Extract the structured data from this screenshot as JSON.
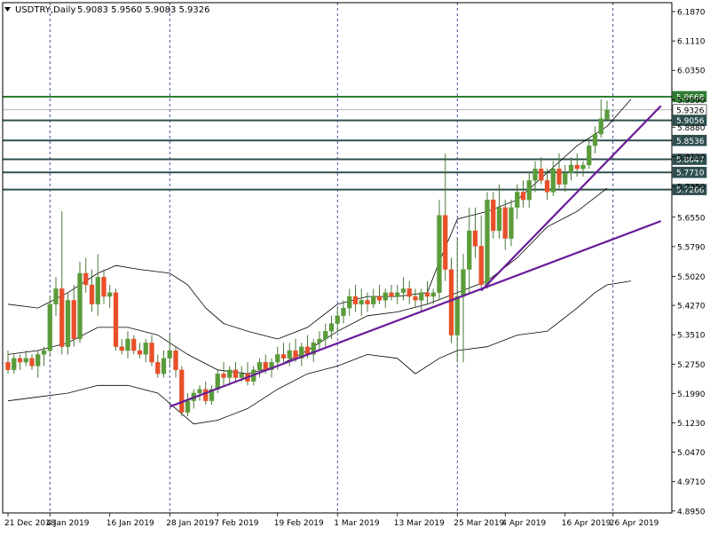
{
  "header": {
    "arrow_icon": "triangle-down-icon",
    "symbol": "USDTRY,Daily",
    "ohlc": "5.9083 5.9560 5.9083 5.9326"
  },
  "colors": {
    "background": "#ffffff",
    "bull": "#5a9c3a",
    "bear": "#e8502a",
    "wick": "#4a7a3a",
    "resistance": "#2f7d32",
    "level": "#2f4f4f",
    "trendline": "#6a1b9a",
    "band": "#000000",
    "grid": "#1a237e",
    "text": "#000000"
  },
  "chart_data": {
    "type": "candlestick",
    "title": "USDTRY,Daily",
    "ylim": [
      4.89,
      6.21
    ],
    "y_ticks": [
      "6.1870",
      "6.1110",
      "6.0350",
      "5.9590",
      "5.8880",
      "5.8120",
      "5.7350",
      "5.6550",
      "5.5790",
      "5.5020",
      "5.4270",
      "5.3510",
      "5.2750",
      "5.1990",
      "5.1230",
      "5.0470",
      "4.9710",
      "4.8950"
    ],
    "x_ticks": [
      "21 Dec 2018",
      "4 Jan 2019",
      "16 Jan 2019",
      "28 Jan 2019",
      "7 Feb 2019",
      "19 Feb 2019",
      "1 Mar 2019",
      "13 Mar 2019",
      "25 Mar 2019",
      "4 Apr 2019",
      "16 Apr 2019",
      "26 Apr 2019"
    ],
    "x_tick_index": [
      0,
      7,
      17,
      27,
      35,
      45,
      55,
      65,
      75,
      83,
      93,
      101
    ],
    "vertical_separators": [
      7,
      27,
      55,
      75,
      101
    ],
    "horizontal_levels": [
      {
        "label": "5.9668",
        "value": 5.9668,
        "role": "resistance"
      },
      {
        "label": "5.9326",
        "value": 5.9326,
        "role": "current"
      },
      {
        "label": "5.9056",
        "value": 5.9056,
        "role": "level"
      },
      {
        "label": "5.8536",
        "value": 5.8536,
        "role": "level"
      },
      {
        "label": "5.8047",
        "value": 5.8047,
        "role": "level"
      },
      {
        "label": "5.7710",
        "value": 5.771,
        "role": "level"
      },
      {
        "label": "5.7266",
        "value": 5.7266,
        "role": "level"
      }
    ],
    "trendlines": [
      {
        "from": [
          27,
          5.165
        ],
        "to": [
          109,
          5.645
        ]
      },
      {
        "from": [
          79,
          5.465
        ],
        "to": [
          109,
          5.943
        ]
      }
    ],
    "candles": [
      [
        5.28,
        5.31,
        5.25,
        5.26
      ],
      [
        5.26,
        5.3,
        5.25,
        5.29
      ],
      [
        5.29,
        5.3,
        5.26,
        5.28
      ],
      [
        5.28,
        5.31,
        5.27,
        5.29
      ],
      [
        5.29,
        5.3,
        5.26,
        5.27
      ],
      [
        5.27,
        5.31,
        5.24,
        5.3
      ],
      [
        5.3,
        5.32,
        5.27,
        5.31
      ],
      [
        5.31,
        5.45,
        5.3,
        5.43
      ],
      [
        5.43,
        5.5,
        5.4,
        5.47
      ],
      [
        5.47,
        5.67,
        5.3,
        5.32
      ],
      [
        5.32,
        5.46,
        5.3,
        5.44
      ],
      [
        5.44,
        5.48,
        5.32,
        5.34
      ],
      [
        5.34,
        5.54,
        5.33,
        5.51
      ],
      [
        5.51,
        5.55,
        5.46,
        5.48
      ],
      [
        5.48,
        5.52,
        5.41,
        5.43
      ],
      [
        5.43,
        5.56,
        5.4,
        5.5
      ],
      [
        5.5,
        5.52,
        5.43,
        5.45
      ],
      [
        5.45,
        5.48,
        5.42,
        5.46
      ],
      [
        5.46,
        5.47,
        5.31,
        5.32
      ],
      [
        5.32,
        5.34,
        5.3,
        5.31
      ],
      [
        5.31,
        5.36,
        5.29,
        5.34
      ],
      [
        5.34,
        5.35,
        5.3,
        5.31
      ],
      [
        5.31,
        5.33,
        5.29,
        5.3
      ],
      [
        5.3,
        5.34,
        5.28,
        5.33
      ],
      [
        5.33,
        5.35,
        5.27,
        5.28
      ],
      [
        5.28,
        5.3,
        5.24,
        5.25
      ],
      [
        5.25,
        5.31,
        5.24,
        5.29
      ],
      [
        5.29,
        5.35,
        5.27,
        5.31
      ],
      [
        5.31,
        5.32,
        5.24,
        5.26
      ],
      [
        5.26,
        5.27,
        5.14,
        5.15
      ],
      [
        5.15,
        5.2,
        5.14,
        5.18
      ],
      [
        5.18,
        5.21,
        5.16,
        5.2
      ],
      [
        5.2,
        5.22,
        5.18,
        5.21
      ],
      [
        5.21,
        5.23,
        5.17,
        5.18
      ],
      [
        5.18,
        5.22,
        5.17,
        5.21
      ],
      [
        5.21,
        5.26,
        5.2,
        5.25
      ],
      [
        5.25,
        5.28,
        5.22,
        5.24
      ],
      [
        5.24,
        5.27,
        5.22,
        5.26
      ],
      [
        5.26,
        5.28,
        5.23,
        5.24
      ],
      [
        5.24,
        5.27,
        5.23,
        5.25
      ],
      [
        5.25,
        5.28,
        5.22,
        5.23
      ],
      [
        5.23,
        5.27,
        5.22,
        5.26
      ],
      [
        5.26,
        5.29,
        5.24,
        5.28
      ],
      [
        5.28,
        5.3,
        5.25,
        5.26
      ],
      [
        5.26,
        5.29,
        5.24,
        5.28
      ],
      [
        5.28,
        5.32,
        5.26,
        5.3
      ],
      [
        5.3,
        5.33,
        5.28,
        5.29
      ],
      [
        5.29,
        5.33,
        5.27,
        5.31
      ],
      [
        5.31,
        5.34,
        5.28,
        5.29
      ],
      [
        5.29,
        5.33,
        5.27,
        5.32
      ],
      [
        5.32,
        5.35,
        5.29,
        5.3
      ],
      [
        5.3,
        5.34,
        5.28,
        5.33
      ],
      [
        5.33,
        5.36,
        5.31,
        5.34
      ],
      [
        5.34,
        5.38,
        5.32,
        5.36
      ],
      [
        5.36,
        5.4,
        5.34,
        5.38
      ],
      [
        5.38,
        5.42,
        5.36,
        5.4
      ],
      [
        5.4,
        5.44,
        5.38,
        5.42
      ],
      [
        5.42,
        5.47,
        5.4,
        5.45
      ],
      [
        5.45,
        5.48,
        5.41,
        5.43
      ],
      [
        5.43,
        5.47,
        5.4,
        5.44
      ],
      [
        5.44,
        5.46,
        5.41,
        5.43
      ],
      [
        5.43,
        5.47,
        5.42,
        5.45
      ],
      [
        5.45,
        5.48,
        5.43,
        5.44
      ],
      [
        5.44,
        5.47,
        5.42,
        5.46
      ],
      [
        5.46,
        5.48,
        5.44,
        5.45
      ],
      [
        5.45,
        5.48,
        5.43,
        5.46
      ],
      [
        5.46,
        5.5,
        5.44,
        5.47
      ],
      [
        5.47,
        5.49,
        5.43,
        5.45
      ],
      [
        5.45,
        5.47,
        5.42,
        5.44
      ],
      [
        5.44,
        5.47,
        5.41,
        5.46
      ],
      [
        5.46,
        5.49,
        5.43,
        5.45
      ],
      [
        5.45,
        5.47,
        5.43,
        5.46
      ],
      [
        5.46,
        5.7,
        5.44,
        5.66
      ],
      [
        5.66,
        5.82,
        5.49,
        5.52
      ],
      [
        5.52,
        5.55,
        5.33,
        5.35
      ],
      [
        5.35,
        5.6,
        5.28,
        5.45
      ],
      [
        5.45,
        5.56,
        5.28,
        5.52
      ],
      [
        5.52,
        5.68,
        5.46,
        5.62
      ],
      [
        5.62,
        5.68,
        5.55,
        5.58
      ],
      [
        5.58,
        5.66,
        5.47,
        5.48
      ],
      [
        5.48,
        5.72,
        5.47,
        5.7
      ],
      [
        5.7,
        5.72,
        5.6,
        5.62
      ],
      [
        5.62,
        5.74,
        5.6,
        5.68
      ],
      [
        5.68,
        5.7,
        5.57,
        5.6
      ],
      [
        5.6,
        5.7,
        5.58,
        5.68
      ],
      [
        5.68,
        5.74,
        5.65,
        5.72
      ],
      [
        5.72,
        5.75,
        5.68,
        5.7
      ],
      [
        5.7,
        5.77,
        5.68,
        5.75
      ],
      [
        5.75,
        5.8,
        5.72,
        5.78
      ],
      [
        5.78,
        5.81,
        5.74,
        5.75
      ],
      [
        5.75,
        5.78,
        5.7,
        5.72
      ],
      [
        5.72,
        5.8,
        5.71,
        5.78
      ],
      [
        5.78,
        5.82,
        5.73,
        5.74
      ],
      [
        5.74,
        5.79,
        5.72,
        5.77
      ],
      [
        5.77,
        5.81,
        5.75,
        5.79
      ],
      [
        5.79,
        5.82,
        5.76,
        5.78
      ],
      [
        5.78,
        5.8,
        5.76,
        5.79
      ],
      [
        5.79,
        5.86,
        5.78,
        5.84
      ],
      [
        5.84,
        5.89,
        5.82,
        5.87
      ],
      [
        5.87,
        5.96,
        5.86,
        5.91
      ],
      [
        5.9083,
        5.956,
        5.9083,
        5.9326
      ]
    ],
    "bollinger_upper": [
      [
        0,
        5.43
      ],
      [
        5,
        5.42
      ],
      [
        10,
        5.46
      ],
      [
        15,
        5.51
      ],
      [
        18,
        5.53
      ],
      [
        22,
        5.52
      ],
      [
        27,
        5.51
      ],
      [
        30,
        5.48
      ],
      [
        33,
        5.42
      ],
      [
        36,
        5.38
      ],
      [
        40,
        5.36
      ],
      [
        45,
        5.34
      ],
      [
        50,
        5.37
      ],
      [
        55,
        5.43
      ],
      [
        60,
        5.45
      ],
      [
        65,
        5.45
      ],
      [
        70,
        5.46
      ],
      [
        72,
        5.54
      ],
      [
        75,
        5.65
      ],
      [
        80,
        5.67
      ],
      [
        85,
        5.7
      ],
      [
        90,
        5.77
      ],
      [
        95,
        5.84
      ],
      [
        100,
        5.89
      ],
      [
        104,
        5.96
      ]
    ],
    "bollinger_middle": [
      [
        0,
        5.3
      ],
      [
        5,
        5.31
      ],
      [
        10,
        5.33
      ],
      [
        15,
        5.37
      ],
      [
        20,
        5.37
      ],
      [
        25,
        5.35
      ],
      [
        30,
        5.3
      ],
      [
        35,
        5.26
      ],
      [
        40,
        5.25
      ],
      [
        45,
        5.27
      ],
      [
        50,
        5.31
      ],
      [
        55,
        5.36
      ],
      [
        60,
        5.4
      ],
      [
        65,
        5.41
      ],
      [
        70,
        5.43
      ],
      [
        75,
        5.46
      ],
      [
        80,
        5.49
      ],
      [
        85,
        5.55
      ],
      [
        90,
        5.63
      ],
      [
        95,
        5.67
      ],
      [
        100,
        5.73
      ]
    ],
    "bollinger_lower": [
      [
        0,
        5.18
      ],
      [
        5,
        5.19
      ],
      [
        10,
        5.2
      ],
      [
        15,
        5.22
      ],
      [
        20,
        5.22
      ],
      [
        25,
        5.2
      ],
      [
        28,
        5.16
      ],
      [
        31,
        5.12
      ],
      [
        35,
        5.13
      ],
      [
        40,
        5.16
      ],
      [
        45,
        5.21
      ],
      [
        50,
        5.25
      ],
      [
        55,
        5.27
      ],
      [
        60,
        5.3
      ],
      [
        65,
        5.29
      ],
      [
        68,
        5.25
      ],
      [
        72,
        5.29
      ],
      [
        75,
        5.31
      ],
      [
        80,
        5.32
      ],
      [
        85,
        5.35
      ],
      [
        90,
        5.36
      ],
      [
        95,
        5.42
      ],
      [
        98,
        5.46
      ],
      [
        100,
        5.48
      ],
      [
        104,
        5.49
      ]
    ]
  }
}
